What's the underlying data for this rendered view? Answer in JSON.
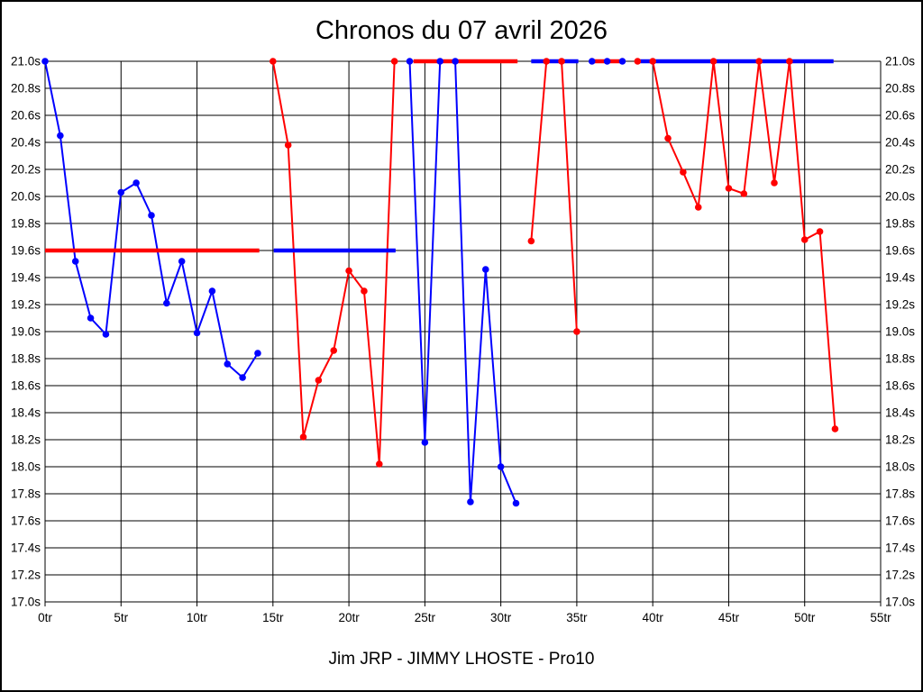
{
  "chart_data": {
    "type": "line",
    "title": "Chronos du 07 avril 2026",
    "footer": "Jim JRP - JIMMY LHOSTE - Pro10",
    "x_unit": "tr",
    "y_unit": "s",
    "xlim": [
      0,
      55
    ],
    "ylim": [
      17.0,
      21.0
    ],
    "grid": "both",
    "legend": "none",
    "x_ticks": {
      "values": [
        0,
        5,
        10,
        15,
        20,
        25,
        30,
        35,
        40,
        45,
        50,
        55
      ],
      "labels": [
        "0tr",
        "5tr",
        "10tr",
        "15tr",
        "20tr",
        "25tr",
        "30tr",
        "35tr",
        "40tr",
        "45tr",
        "50tr",
        "55tr"
      ]
    },
    "y_ticks": {
      "values": [
        21.0,
        20.8,
        20.6,
        20.4,
        20.2,
        20.0,
        19.8,
        19.6,
        19.4,
        19.2,
        19.0,
        18.8,
        18.6,
        18.4,
        18.2,
        18.0,
        17.8,
        17.6,
        17.4,
        17.2,
        17.0
      ],
      "labels": [
        "21.0s",
        "20.8s",
        "20.6s",
        "20.4s",
        "20.2s",
        "20.0s",
        "19.8s",
        "19.6s",
        "19.4s",
        "19.2s",
        "19.0s",
        "18.8s",
        "18.6s",
        "18.4s",
        "18.2s",
        "18.0s",
        "17.8s",
        "17.6s",
        "17.4s",
        "17.2s",
        "17.0s"
      ],
      "shown_on": "both-sides"
    },
    "series": [
      {
        "name": "driver-blue",
        "color": "#0000ff",
        "segments": [
          {
            "x": [
              0,
              1,
              2,
              3,
              4,
              5,
              6,
              7,
              8,
              9,
              10,
              11,
              12,
              13,
              14
            ],
            "y": [
              21.0,
              20.45,
              19.52,
              19.1,
              18.98,
              20.03,
              20.1,
              19.86,
              19.21,
              19.52,
              18.99,
              19.3,
              18.76,
              18.66,
              18.84
            ]
          },
          {
            "x": [
              24,
              25,
              26,
              27,
              28,
              29,
              30,
              31
            ],
            "y": [
              21.0,
              18.18,
              21.0,
              21.0,
              17.74,
              19.46,
              18.0,
              17.73
            ]
          },
          {
            "x": [
              36,
              37,
              38
            ],
            "y": [
              21.0,
              21.0,
              21.0
            ]
          }
        ]
      },
      {
        "name": "driver-red",
        "color": "#ff0000",
        "segments": [
          {
            "x": [
              15,
              16,
              17,
              18,
              19,
              20,
              21,
              22,
              23
            ],
            "y": [
              21.0,
              20.38,
              18.22,
              18.64,
              18.86,
              19.45,
              19.3,
              18.02,
              21.0
            ]
          },
          {
            "x": [
              32,
              33,
              34,
              35
            ],
            "y": [
              19.67,
              21.0,
              21.0,
              19.0
            ]
          },
          {
            "x": [
              39,
              40,
              41,
              42,
              43,
              44,
              45,
              46,
              47,
              48,
              49,
              50,
              51,
              52
            ],
            "y": [
              21.0,
              21.0,
              20.43,
              20.18,
              19.92,
              21.0,
              20.06,
              20.02,
              21.0,
              20.1,
              21.0,
              19.68,
              19.74,
              18.28
            ]
          }
        ]
      }
    ],
    "reference_lines": [
      {
        "color": "#ff0000",
        "y": 19.6,
        "x_start": 0.0,
        "x_end": 14.1
      },
      {
        "color": "#0000ff",
        "y": 19.6,
        "x_start": 15.05,
        "x_end": 23.07
      },
      {
        "color": "#ff0000",
        "y": 21.0,
        "x_start": 24.25,
        "x_end": 31.1
      },
      {
        "color": "#0000ff",
        "y": 21.0,
        "x_start": 32.0,
        "x_end": 35.1
      },
      {
        "color": "#ff0000",
        "y": 21.0,
        "x_start": 36.0,
        "x_end": 38.0
      },
      {
        "color": "#0000ff",
        "y": 21.0,
        "x_start": 38.85,
        "x_end": 51.9
      }
    ],
    "colors": {
      "blue_series": "#0000ff",
      "red_series": "#ff0000",
      "grid": "#000000",
      "background": "#ffffff",
      "border": "#000000"
    }
  }
}
